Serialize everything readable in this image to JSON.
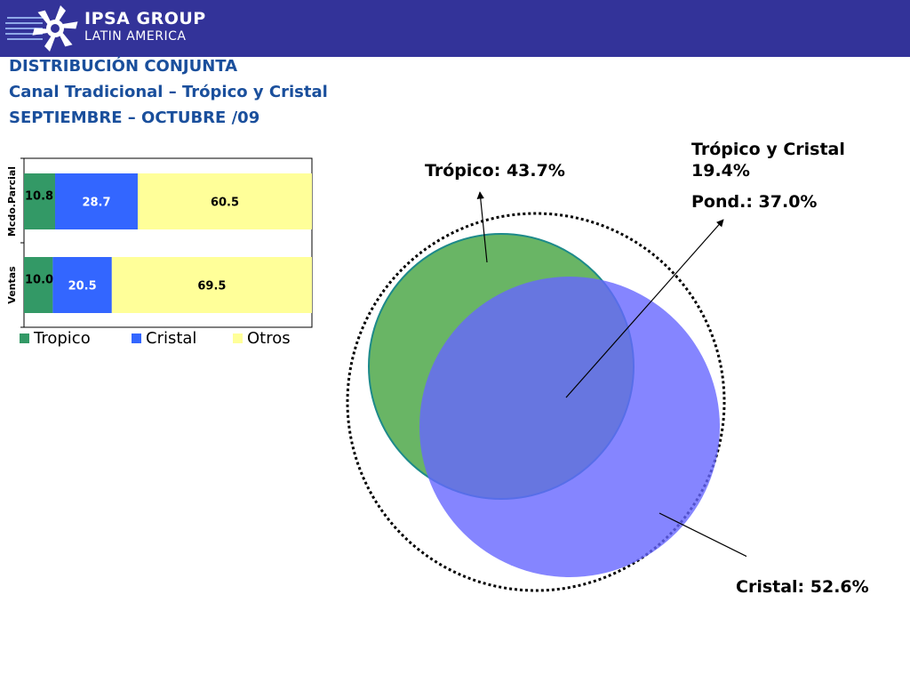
{
  "header": {
    "brand_line1": "IPSA GROUP",
    "brand_line2": "LATIN AMERICA",
    "colors": {
      "bar": "#333399",
      "title": "#1a4f9c"
    }
  },
  "titles": {
    "line1": "DISTRIBUCIÓN CONJUNTA",
    "line2": "Canal Tradicional – Trópico y Cristal",
    "line3": "SEPTIEMBRE – OCTUBRE /09"
  },
  "chart_data": [
    {
      "type": "bar",
      "orientation": "horizontal",
      "stacked": true,
      "categories": [
        "Mcdo.Parcial",
        "Ventas"
      ],
      "series": [
        {
          "name": "Tropico",
          "values": [
            10.8,
            10.0
          ],
          "color": "#339966"
        },
        {
          "name": "Cristal",
          "values": [
            28.7,
            20.5
          ],
          "color": "#3366ff"
        },
        {
          "name": "Otros",
          "values": [
            60.5,
            69.5
          ],
          "color": "#ffff99"
        }
      ],
      "xlim": [
        0,
        100
      ],
      "legend": "bottom"
    },
    {
      "type": "venn",
      "sets": [
        {
          "name": "Trópico",
          "label": "Trópico: 43.7%",
          "value": 43.7,
          "color": "#339933"
        },
        {
          "name": "Cristal",
          "label": "Cristal: 52.6%",
          "value": 52.6,
          "color": "#6666ff"
        }
      ],
      "intersection": {
        "label_line1": "Trópico y Cristal",
        "label_line2": "19.4%",
        "value": 19.4
      },
      "weighted": {
        "label": "Pond.: 37.0%",
        "value": 37.0
      }
    }
  ]
}
